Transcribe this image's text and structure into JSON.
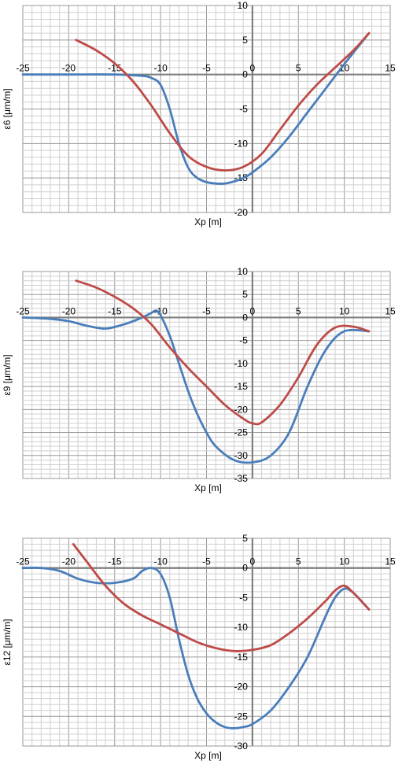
{
  "chart_data": [
    {
      "type": "line",
      "xlabel": "Xp  [m]",
      "ylabel": "ε6  [μm/m]",
      "xlim": [
        -25,
        15
      ],
      "ylim": [
        -20,
        10
      ],
      "x_ticks": [
        -25,
        -20,
        -15,
        -10,
        -5,
        0,
        5,
        10,
        15
      ],
      "y_ticks": [
        10,
        5,
        0,
        -5,
        -10,
        -15,
        -20
      ],
      "grid": true,
      "series": [
        {
          "color": "#4a7ebb",
          "x": [
            -25,
            -20,
            -15,
            -12,
            -11,
            -10,
            -9,
            -8,
            -7,
            -6,
            -5,
            -4,
            -3,
            -2,
            -1,
            0,
            2,
            4,
            6,
            8,
            10,
            12.7
          ],
          "y": [
            0,
            0,
            0,
            -0.2,
            -0.5,
            -1.5,
            -5,
            -10,
            -13.5,
            -15,
            -15.6,
            -15.8,
            -15.8,
            -15.5,
            -15,
            -14.2,
            -12,
            -9,
            -5.5,
            -2,
            1.5,
            6
          ]
        },
        {
          "color": "#be4b48",
          "x": [
            -19.2,
            -17,
            -15,
            -13,
            -11,
            -9,
            -7,
            -5,
            -3,
            -1,
            1,
            3,
            5,
            7,
            9,
            11,
            12.7
          ],
          "y": [
            5,
            3.5,
            1.6,
            -1,
            -4.5,
            -8.5,
            -11.8,
            -13.4,
            -13.9,
            -13.4,
            -11.5,
            -8,
            -4.5,
            -1.5,
            1,
            3.5,
            6
          ]
        }
      ]
    },
    {
      "type": "line",
      "xlabel": "Xp  [m]",
      "ylabel": "ε9  [μm/m]",
      "xlim": [
        -25,
        15
      ],
      "ylim": [
        -35,
        10
      ],
      "x_ticks": [
        -25,
        -20,
        -15,
        -10,
        -5,
        0,
        5,
        10,
        15
      ],
      "y_ticks": [
        10,
        5,
        0,
        -5,
        -10,
        -15,
        -20,
        -25,
        -30,
        -35
      ],
      "grid": true,
      "series": [
        {
          "color": "#4a7ebb",
          "x": [
            -25,
            -22,
            -20,
            -18,
            -16,
            -14,
            -12,
            -11,
            -10.5,
            -10,
            -9,
            -8,
            -7,
            -6,
            -5,
            -4,
            -2,
            0,
            2,
            4,
            6,
            8,
            10,
            12.7
          ],
          "y": [
            0,
            -0.3,
            -0.8,
            -1.8,
            -2.4,
            -1.5,
            0,
            1,
            1.5,
            0.5,
            -4,
            -10,
            -16,
            -21,
            -25,
            -28,
            -31,
            -31.5,
            -30,
            -25,
            -15,
            -7,
            -3,
            -3
          ]
        },
        {
          "color": "#be4b48",
          "x": [
            -19.2,
            -17,
            -15,
            -13,
            -11,
            -9,
            -7,
            -5,
            -3,
            -1,
            0,
            1,
            3,
            5,
            7,
            9,
            11,
            12.7
          ],
          "y": [
            8,
            6.5,
            4.5,
            2,
            -1.5,
            -6.5,
            -11,
            -15,
            -19,
            -22,
            -23,
            -22.8,
            -19,
            -13,
            -6,
            -2.2,
            -2,
            -3
          ]
        }
      ]
    },
    {
      "type": "line",
      "xlabel": "Xp  [m]",
      "ylabel": "ε12  [μm/m]",
      "xlim": [
        -25,
        15
      ],
      "ylim": [
        -30,
        5
      ],
      "x_ticks": [
        -25,
        -20,
        -15,
        -10,
        -5,
        0,
        5,
        10,
        15
      ],
      "y_ticks": [
        5,
        0,
        -5,
        -10,
        -15,
        -20,
        -25,
        -30
      ],
      "grid": true,
      "series": [
        {
          "color": "#4a7ebb",
          "x": [
            -25,
            -23,
            -21,
            -19,
            -17,
            -15,
            -13,
            -12,
            -11,
            -10,
            -9,
            -8,
            -7,
            -6,
            -5,
            -4,
            -3,
            -2,
            -1,
            0,
            2,
            4,
            6,
            8,
            9,
            10,
            11,
            12.7
          ],
          "y": [
            0,
            0,
            -0.5,
            -1.8,
            -2.5,
            -2.5,
            -1.8,
            -0.5,
            0,
            -1,
            -5,
            -12,
            -18,
            -22,
            -24.5,
            -26,
            -26.8,
            -27,
            -26.8,
            -26.3,
            -24,
            -20,
            -15,
            -8,
            -5,
            -3.5,
            -4.2,
            -7
          ]
        },
        {
          "color": "#be4b48",
          "x": [
            -19.5,
            -18,
            -16,
            -14,
            -12,
            -10,
            -8,
            -6,
            -4,
            -2,
            0,
            2,
            4,
            6,
            8,
            9,
            10,
            11,
            12.7
          ],
          "y": [
            4,
            1,
            -3,
            -6,
            -8,
            -9.5,
            -11,
            -12.5,
            -13.5,
            -14,
            -13.8,
            -13,
            -11,
            -8.5,
            -5.5,
            -3.8,
            -3,
            -4.2,
            -7
          ]
        }
      ]
    }
  ]
}
